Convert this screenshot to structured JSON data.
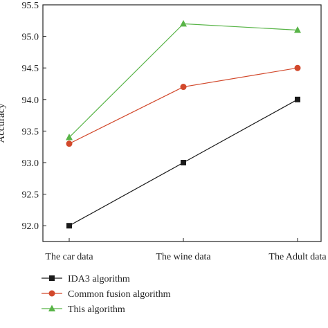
{
  "chart_data": {
    "type": "line",
    "categories": [
      "The car data",
      "The wine data",
      "The Adult data"
    ],
    "ylabel": "Accuracy",
    "ylim": [
      91.75,
      95.5
    ],
    "yticks": [
      "92.0",
      "92.5",
      "93.0",
      "93.5",
      "94.0",
      "94.5",
      "95.0",
      "95.5"
    ],
    "series": [
      {
        "name": "IDA3 algorithm",
        "values": [
          92.0,
          93.0,
          94.0
        ],
        "color": "#1a1a1a",
        "marker": "square"
      },
      {
        "name": "Common fusion algorithm",
        "values": [
          93.3,
          94.2,
          94.5
        ],
        "color": "#d2482b",
        "marker": "circle"
      },
      {
        "name": "This algorithm",
        "values": [
          93.4,
          95.2,
          95.1
        ],
        "color": "#58b447",
        "marker": "triangle"
      }
    ],
    "legend_position": "bottom-left",
    "grid": false
  }
}
